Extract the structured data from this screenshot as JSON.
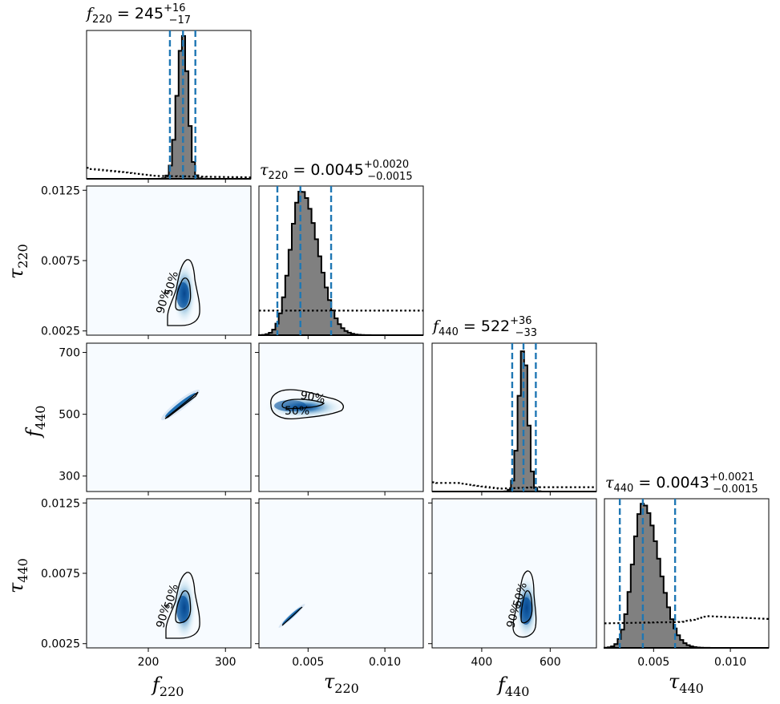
{
  "chart_data": {
    "type": "corner",
    "parameters": [
      {
        "key": "f220",
        "symbol": "f",
        "sub": "220",
        "range": [
          120,
          333
        ],
        "ticks": [
          {
            "v": 200,
            "label": "200"
          },
          {
            "v": 300,
            "label": "300"
          }
        ]
      },
      {
        "key": "tau220",
        "symbol": "τ",
        "sub": "220",
        "range": [
          0.0018,
          0.0125
        ],
        "ticks": [
          {
            "v": 0.005,
            "label": "0.005"
          },
          {
            "v": 0.01,
            "label": "0.010"
          }
        ]
      },
      {
        "key": "f440",
        "symbol": "f",
        "sub": "440",
        "range": [
          255,
          735
        ],
        "ticks": [
          {
            "v": 400,
            "label": "400"
          },
          {
            "v": 600,
            "label": "600"
          }
        ]
      },
      {
        "key": "tau440",
        "symbol": "τ",
        "sub": "440",
        "range": [
          0.0018,
          0.0125
        ],
        "ticks": [
          {
            "v": 0.005,
            "label": "0.005"
          },
          {
            "v": 0.01,
            "label": "0.010"
          }
        ]
      }
    ],
    "row_ticks": [
      null,
      [
        {
          "v": 0.0125,
          "label": "0.0125"
        },
        {
          "v": 0.0075,
          "label": "0.0075"
        },
        {
          "v": 0.0025,
          "label": "0.0025"
        }
      ],
      [
        {
          "v": 700,
          "label": "700"
        },
        {
          "v": 500,
          "label": "500"
        },
        {
          "v": 300,
          "label": "300"
        }
      ],
      [
        {
          "v": 0.0125,
          "label": "0.0125"
        },
        {
          "v": 0.0075,
          "label": "0.0075"
        },
        {
          "v": 0.0025,
          "label": "0.0025"
        }
      ]
    ],
    "row_ranges": [
      null,
      [
        0.0022,
        0.0128
      ],
      [
        250,
        730
      ],
      [
        0.0022,
        0.0128
      ]
    ],
    "titles": [
      {
        "symbol": "f",
        "sub": "220",
        "eq": " = 245",
        "sup": "+16",
        "inf": "−17"
      },
      {
        "symbol": "τ",
        "sub": "220",
        "eq": " = 0.0045",
        "sup": "+0.0020",
        "inf": "−0.0015"
      },
      {
        "symbol": "f",
        "sub": "440",
        "eq": " = 522",
        "sup": "+36",
        "inf": "−33"
      },
      {
        "symbol": "τ",
        "sub": "440",
        "eq": " = 0.0043",
        "sup": "+0.0021",
        "inf": "−0.0015"
      }
    ],
    "marginals": [
      {
        "median": 245,
        "lower": 228,
        "upper": 261,
        "mu": 245,
        "sl": 7.5,
        "sr": 6.5,
        "prior": [
          [
            120,
            0.09
          ],
          [
            124,
            0.07
          ],
          [
            160,
            0.05
          ],
          [
            210,
            0.02
          ],
          [
            333,
            0.01
          ]
        ]
      },
      {
        "median": 0.0045,
        "lower": 0.003,
        "upper": 0.0065,
        "mu": 0.00455,
        "sl": 0.0007,
        "sr": 0.0011,
        "prior": [
          [
            0.0018,
            0.17
          ],
          [
            0.0125,
            0.17
          ]
        ]
      },
      {
        "median": 522,
        "lower": 489,
        "upper": 558,
        "mu": 522,
        "sl": 14,
        "sr": 13,
        "prior": [
          [
            255,
            0.09
          ],
          [
            262,
            0.06
          ],
          [
            330,
            0.06
          ],
          [
            450,
            0.02
          ],
          [
            570,
            0.03
          ],
          [
            735,
            0.03
          ]
        ]
      },
      {
        "median": 0.0043,
        "lower": 0.0028,
        "upper": 0.0064,
        "mu": 0.0043,
        "sl": 0.00065,
        "sr": 0.00105,
        "prior": [
          [
            0.0018,
            0.17
          ],
          [
            0.007,
            0.18
          ],
          [
            0.0085,
            0.22
          ],
          [
            0.0125,
            0.2
          ]
        ]
      }
    ],
    "contour_levels": [
      "50%",
      "90%"
    ]
  }
}
